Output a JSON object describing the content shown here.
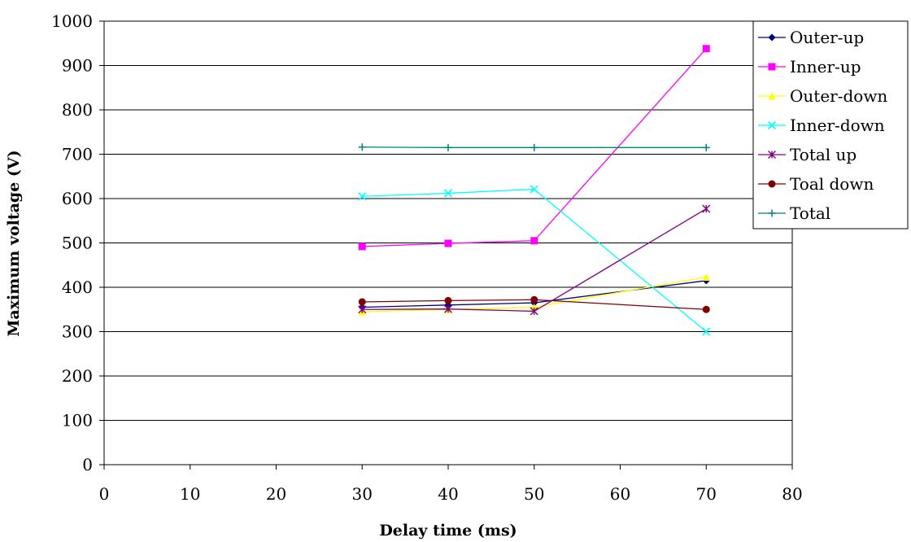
{
  "chart_data": {
    "type": "line",
    "title": "",
    "xlabel": "Delay time (ms)",
    "ylabel": "Maximum voltage (V)",
    "xlim": [
      0,
      80
    ],
    "ylim": [
      0,
      1000
    ],
    "xticks": [
      0,
      10,
      20,
      30,
      40,
      50,
      60,
      70,
      80
    ],
    "yticks": [
      0,
      100,
      200,
      300,
      400,
      500,
      600,
      700,
      800,
      900,
      1000
    ],
    "grid": "horizontal",
    "legend_position": "top-right",
    "x": [
      30,
      40,
      50,
      70
    ],
    "series": [
      {
        "name": "Outer-up",
        "values": [
          355,
          360,
          365,
          415
        ],
        "color": "#000080",
        "marker": "diamond"
      },
      {
        "name": "Inner-up",
        "values": [
          492,
          499,
          505,
          938
        ],
        "color": "#ff00ff",
        "marker": "square"
      },
      {
        "name": "Outer-down",
        "values": [
          345,
          350,
          355,
          423
        ],
        "color": "#ffff00",
        "marker": "triangle"
      },
      {
        "name": "Inner-down",
        "values": [
          605,
          612,
          621,
          300
        ],
        "color": "#00ffff",
        "marker": "x"
      },
      {
        "name": "Total up",
        "values": [
          350,
          351,
          346,
          577
        ],
        "color": "#800080",
        "marker": "star"
      },
      {
        "name": "Toal down",
        "values": [
          367,
          370,
          372,
          350
        ],
        "color": "#800000",
        "marker": "circle"
      },
      {
        "name": "Total",
        "values": [
          716,
          715,
          715,
          715
        ],
        "color": "#008080",
        "marker": "plus"
      }
    ]
  }
}
